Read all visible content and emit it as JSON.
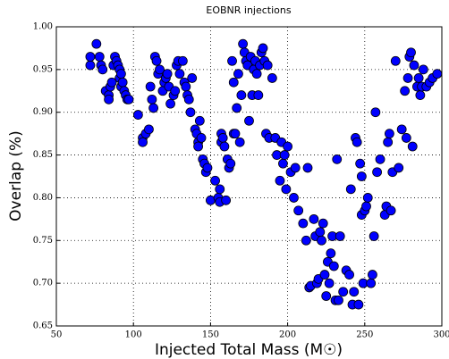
{
  "chart_data": {
    "type": "scatter",
    "title": "EOBNR injections",
    "x_label": "Injected Total Mass (M☉)",
    "y_label": "Overlap (%)",
    "xlim": [
      50,
      300
    ],
    "ylim": [
      0.65,
      1.0
    ],
    "xticks": [
      50,
      100,
      150,
      200,
      250,
      300
    ],
    "yticks": [
      0.65,
      {
        "value": 0.7,
        "label": "0.70"
      },
      0.75,
      {
        "value": 0.8,
        "label": "0.80"
      },
      0.85,
      {
        "value": 0.9,
        "label": "0.90"
      },
      0.95,
      {
        "value": 1.0,
        "label": "1.00"
      }
    ],
    "grid": true,
    "series": [
      {
        "color": "#0000ff",
        "x": [
          72,
          72,
          76,
          78,
          79,
          80,
          82,
          84,
          84,
          85,
          86,
          87,
          88,
          89,
          90,
          91,
          91,
          92,
          92,
          93,
          94,
          95,
          96,
          97,
          103,
          106,
          106,
          108,
          110,
          111,
          112,
          113,
          114,
          115,
          116,
          117,
          119,
          120,
          121,
          122,
          123,
          124,
          126,
          127,
          128,
          129,
          130,
          132,
          133,
          134,
          135,
          136,
          137,
          138,
          140,
          141,
          142,
          142,
          143,
          144,
          145,
          146,
          147,
          148,
          150,
          153,
          155,
          156,
          156,
          157,
          157,
          158,
          159,
          160,
          161,
          162,
          163,
          164,
          165,
          165,
          166,
          167,
          168,
          169,
          170,
          171,
          172,
          173,
          174,
          175,
          176,
          177,
          178,
          179,
          180,
          181,
          182,
          183,
          184,
          185,
          186,
          187,
          188,
          190,
          192,
          193,
          195,
          196,
          197,
          198,
          199,
          200,
          202,
          204,
          205,
          207,
          210,
          212,
          213,
          214,
          215,
          217,
          218,
          219,
          220,
          221,
          222,
          223,
          224,
          225,
          226,
          227,
          228,
          229,
          230,
          231,
          232,
          233,
          234,
          236,
          238,
          240,
          241,
          242,
          243,
          244,
          245,
          246,
          247,
          248,
          248,
          249,
          250,
          251,
          252,
          254,
          255,
          256,
          257,
          258,
          260,
          263,
          264,
          265,
          266,
          267,
          268,
          270,
          272,
          274,
          276,
          277,
          278,
          279,
          280,
          281,
          282,
          284,
          285,
          286,
          287,
          288,
          290,
          292,
          294,
          297
        ],
        "values": [
          0.955,
          0.965,
          0.98,
          0.965,
          0.955,
          0.95,
          0.925,
          0.92,
          0.915,
          0.93,
          0.935,
          0.955,
          0.965,
          0.96,
          0.955,
          0.95,
          0.94,
          0.945,
          0.93,
          0.935,
          0.925,
          0.92,
          0.915,
          0.915,
          0.897,
          0.87,
          0.865,
          0.875,
          0.88,
          0.93,
          0.915,
          0.905,
          0.965,
          0.96,
          0.945,
          0.95,
          0.925,
          0.935,
          0.94,
          0.945,
          0.93,
          0.91,
          0.92,
          0.925,
          0.955,
          0.96,
          0.945,
          0.96,
          0.935,
          0.93,
          0.92,
          0.915,
          0.9,
          0.94,
          0.88,
          0.875,
          0.865,
          0.86,
          0.89,
          0.87,
          0.845,
          0.84,
          0.83,
          0.835,
          0.797,
          0.82,
          0.8,
          0.795,
          0.81,
          0.875,
          0.865,
          0.87,
          0.86,
          0.797,
          0.845,
          0.835,
          0.84,
          0.96,
          0.875,
          0.935,
          0.875,
          0.905,
          0.945,
          0.865,
          0.92,
          0.98,
          0.97,
          0.96,
          0.955,
          0.89,
          0.965,
          0.92,
          0.95,
          0.96,
          0.945,
          0.92,
          0.955,
          0.97,
          0.975,
          0.96,
          0.875,
          0.955,
          0.87,
          0.94,
          0.87,
          0.85,
          0.82,
          0.865,
          0.84,
          0.85,
          0.81,
          0.86,
          0.83,
          0.8,
          0.835,
          0.785,
          0.77,
          0.75,
          0.835,
          0.695,
          0.697,
          0.775,
          0.755,
          0.7,
          0.705,
          0.76,
          0.75,
          0.77,
          0.71,
          0.685,
          0.725,
          0.7,
          0.735,
          0.755,
          0.72,
          0.68,
          0.845,
          0.68,
          0.755,
          0.69,
          0.715,
          0.71,
          0.81,
          0.675,
          0.69,
          0.87,
          0.865,
          0.675,
          0.84,
          0.825,
          0.78,
          0.7,
          0.785,
          0.79,
          0.8,
          0.7,
          0.71,
          0.755,
          0.9,
          0.83,
          0.845,
          0.78,
          0.79,
          0.865,
          0.875,
          0.785,
          0.83,
          0.96,
          0.835,
          0.88,
          0.925,
          0.87,
          0.94,
          0.965,
          0.97,
          0.86,
          0.955,
          0.93,
          0.94,
          0.92,
          0.93,
          0.95,
          0.93,
          0.935,
          0.94,
          0.945
        ]
      }
    ]
  }
}
